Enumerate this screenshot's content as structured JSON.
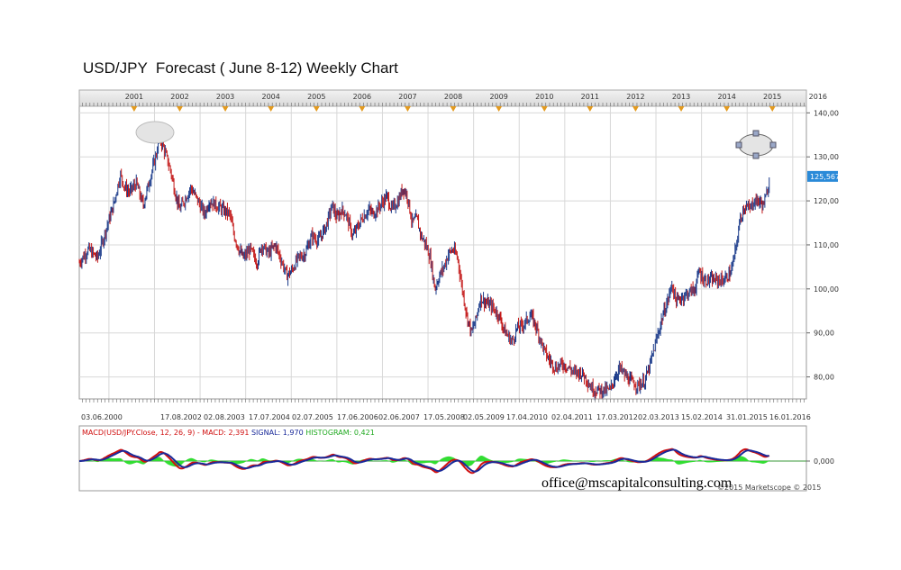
{
  "title": "USD/JPY  Forecast ( June 8-12) Weekly Chart",
  "watermark": "office@mscapitalconsulting.com",
  "copyright": "©2015 Marketscope © 2015",
  "colors": {
    "up_candle": "#1a3a8a",
    "down_candle": "#c41a1a",
    "macd_line": "#d01010",
    "signal_line": "#1a2a9a",
    "histogram": "#33dd33",
    "price_label_bg": "#2a8ad8",
    "grid": "#d8d8d8",
    "ellipse_fill": "#e4e4e4"
  },
  "chart_data": [
    {
      "type": "candlestick",
      "title": "USD/JPY  Forecast ( June 8-12) Weekly Chart",
      "top_year_labels": [
        "2001",
        "2002",
        "2003",
        "2004",
        "2005",
        "2006",
        "2007",
        "2008",
        "2009",
        "2010",
        "2011",
        "2012",
        "2013",
        "2014",
        "2015",
        "2016"
      ],
      "x_tick_labels": [
        "03.06.2000",
        "17.08.2002",
        "02.08.2003",
        "17.07.2004",
        "02.07.2005",
        "17.06.2006",
        "02.06.2007",
        "17.05.2008",
        "02.05.2009",
        "17.04.2010",
        "02.04.2011",
        "17.03.2012",
        "02.03.2013",
        "15.02.2014",
        "31.01.2015",
        "16.01.2016"
      ],
      "y_tick_labels": [
        "140,00",
        "130,00",
        "120,00",
        "110,00",
        "100,00",
        "90,00",
        "80,00"
      ],
      "y_ticks": [
        140,
        130,
        120,
        110,
        100,
        90,
        80
      ],
      "ylim": [
        75,
        141.5
      ],
      "xlim": [
        2000.35,
        2016.3
      ],
      "last_price_label": "125,567",
      "last_price": 125.567,
      "grid": true,
      "annotations": [
        "ellipse at 2002 high",
        "selected ellipse at 2015 projection"
      ],
      "price_path": [
        [
          2000.35,
          106
        ],
        [
          2000.55,
          109
        ],
        [
          2000.75,
          107
        ],
        [
          2000.95,
          114
        ],
        [
          2001.1,
          119
        ],
        [
          2001.25,
          126
        ],
        [
          2001.35,
          123
        ],
        [
          2001.45,
          122
        ],
        [
          2001.6,
          124
        ],
        [
          2001.75,
          119
        ],
        [
          2001.9,
          125
        ],
        [
          2002.05,
          131
        ],
        [
          2002.1,
          134.7
        ],
        [
          2002.2,
          132
        ],
        [
          2002.35,
          127
        ],
        [
          2002.45,
          122
        ],
        [
          2002.55,
          118
        ],
        [
          2002.65,
          120
        ],
        [
          2002.8,
          123
        ],
        [
          2002.9,
          121
        ],
        [
          2003.0,
          119
        ],
        [
          2003.1,
          117
        ],
        [
          2003.2,
          120
        ],
        [
          2003.35,
          119
        ],
        [
          2003.5,
          118
        ],
        [
          2003.65,
          117
        ],
        [
          2003.75,
          112
        ],
        [
          2003.85,
          109
        ],
        [
          2003.95,
          107
        ],
        [
          2004.1,
          109
        ],
        [
          2004.25,
          106
        ],
        [
          2004.35,
          110
        ],
        [
          2004.5,
          108
        ],
        [
          2004.65,
          110
        ],
        [
          2004.8,
          106
        ],
        [
          2004.9,
          103
        ],
        [
          2005.0,
          104
        ],
        [
          2005.15,
          107
        ],
        [
          2005.3,
          108
        ],
        [
          2005.45,
          112
        ],
        [
          2005.6,
          111
        ],
        [
          2005.75,
          114
        ],
        [
          2005.9,
          119
        ],
        [
          2006.0,
          116
        ],
        [
          2006.1,
          118
        ],
        [
          2006.2,
          117
        ],
        [
          2006.35,
          112
        ],
        [
          2006.45,
          114
        ],
        [
          2006.55,
          116
        ],
        [
          2006.7,
          118
        ],
        [
          2006.8,
          117
        ],
        [
          2006.95,
          119
        ],
        [
          2007.1,
          121
        ],
        [
          2007.2,
          118
        ],
        [
          2007.35,
          120
        ],
        [
          2007.45,
          123
        ],
        [
          2007.55,
          121
        ],
        [
          2007.65,
          115
        ],
        [
          2007.75,
          116
        ],
        [
          2007.85,
          112
        ],
        [
          2007.95,
          110
        ],
        [
          2008.05,
          107
        ],
        [
          2008.15,
          100
        ],
        [
          2008.25,
          103
        ],
        [
          2008.35,
          105
        ],
        [
          2008.45,
          108
        ],
        [
          2008.55,
          109
        ],
        [
          2008.65,
          107
        ],
        [
          2008.75,
          100
        ],
        [
          2008.85,
          94
        ],
        [
          2008.95,
          90
        ],
        [
          2009.05,
          93
        ],
        [
          2009.15,
          98
        ],
        [
          2009.25,
          97
        ],
        [
          2009.4,
          96
        ],
        [
          2009.55,
          94
        ],
        [
          2009.7,
          90
        ],
        [
          2009.85,
          88
        ],
        [
          2009.95,
          91
        ],
        [
          2010.1,
          92
        ],
        [
          2010.25,
          94
        ],
        [
          2010.35,
          92
        ],
        [
          2010.45,
          89
        ],
        [
          2010.55,
          86
        ],
        [
          2010.65,
          84
        ],
        [
          2010.8,
          82
        ],
        [
          2010.95,
          83
        ],
        [
          2011.1,
          82
        ],
        [
          2011.2,
          81
        ],
        [
          2011.35,
          81
        ],
        [
          2011.45,
          80
        ],
        [
          2011.55,
          78
        ],
        [
          2011.65,
          77
        ],
        [
          2011.8,
          77
        ],
        [
          2011.9,
          77
        ],
        [
          2012.0,
          77
        ],
        [
          2012.1,
          80
        ],
        [
          2012.2,
          82
        ],
        [
          2012.35,
          80
        ],
        [
          2012.45,
          79
        ],
        [
          2012.6,
          78
        ],
        [
          2012.75,
          79
        ],
        [
          2012.85,
          82
        ],
        [
          2012.95,
          86
        ],
        [
          2013.05,
          90
        ],
        [
          2013.15,
          94
        ],
        [
          2013.25,
          97
        ],
        [
          2013.35,
          101
        ],
        [
          2013.45,
          97
        ],
        [
          2013.55,
          98
        ],
        [
          2013.7,
          99
        ],
        [
          2013.85,
          100
        ],
        [
          2013.95,
          104
        ],
        [
          2014.05,
          102
        ],
        [
          2014.2,
          102
        ],
        [
          2014.35,
          102
        ],
        [
          2014.5,
          102
        ],
        [
          2014.65,
          104
        ],
        [
          2014.75,
          109
        ],
        [
          2014.85,
          116
        ],
        [
          2014.95,
          119
        ],
        [
          2015.05,
          118
        ],
        [
          2015.15,
          120
        ],
        [
          2015.25,
          120
        ],
        [
          2015.35,
          119
        ],
        [
          2015.42,
          121
        ],
        [
          2015.5,
          125.6
        ]
      ]
    },
    {
      "type": "macd",
      "label": "MACD(USD/JPY.Close, 12, 26, 9) - MACD: 2,391  SIGNAL: 1,970  HISTOGRAM: 0,421",
      "label_parts": {
        "macd_prefix": "MACD(USD/JPY.Close, 12, 26, 9) - MACD: 2,391",
        "signal": "SIGNAL: 1,970",
        "histogram": "HISTOGRAM: 0,421"
      },
      "y_tick_labels": [
        "0,000"
      ],
      "macd": 2.391,
      "signal": 1.97,
      "histogram": 0.421
    }
  ]
}
